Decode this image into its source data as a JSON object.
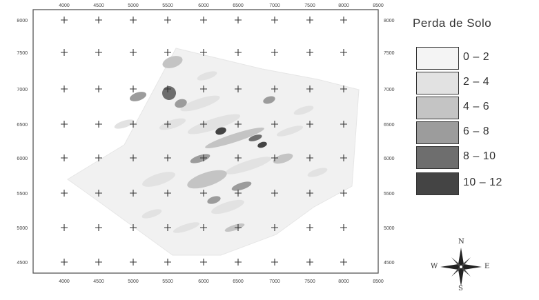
{
  "map": {
    "x_ticks": [
      "4000",
      "4500",
      "5000",
      "5500",
      "6000",
      "6500",
      "7000",
      "7500",
      "8000",
      "8500"
    ],
    "y_ticks_left": [
      "8000",
      "7500",
      "7000",
      "6500",
      "6000",
      "5500",
      "5000",
      "4500"
    ],
    "y_ticks_right": [
      "8000",
      "7500",
      "7000",
      "6500",
      "6000",
      "5500",
      "5000",
      "4500"
    ],
    "x_ticks_top": [
      "4000",
      "4500",
      "5000",
      "5500",
      "6000",
      "6500",
      "7000",
      "7500",
      "8000",
      "8500"
    ]
  },
  "legend": {
    "title": "Perda de Solo",
    "classes": [
      {
        "label": "0 – 2",
        "color": "#f4f4f4"
      },
      {
        "label": "2 – 4",
        "color": "#e2e2e2"
      },
      {
        "label": "4 – 6",
        "color": "#c4c4c4"
      },
      {
        "label": "6 – 8",
        "color": "#9c9c9c"
      },
      {
        "label": "8 – 10",
        "color": "#6e6e6e"
      },
      {
        "label": "10 – 12",
        "color": "#444444"
      }
    ]
  },
  "compass": {
    "north": "N",
    "south": "S",
    "east": "E",
    "west": "W"
  }
}
